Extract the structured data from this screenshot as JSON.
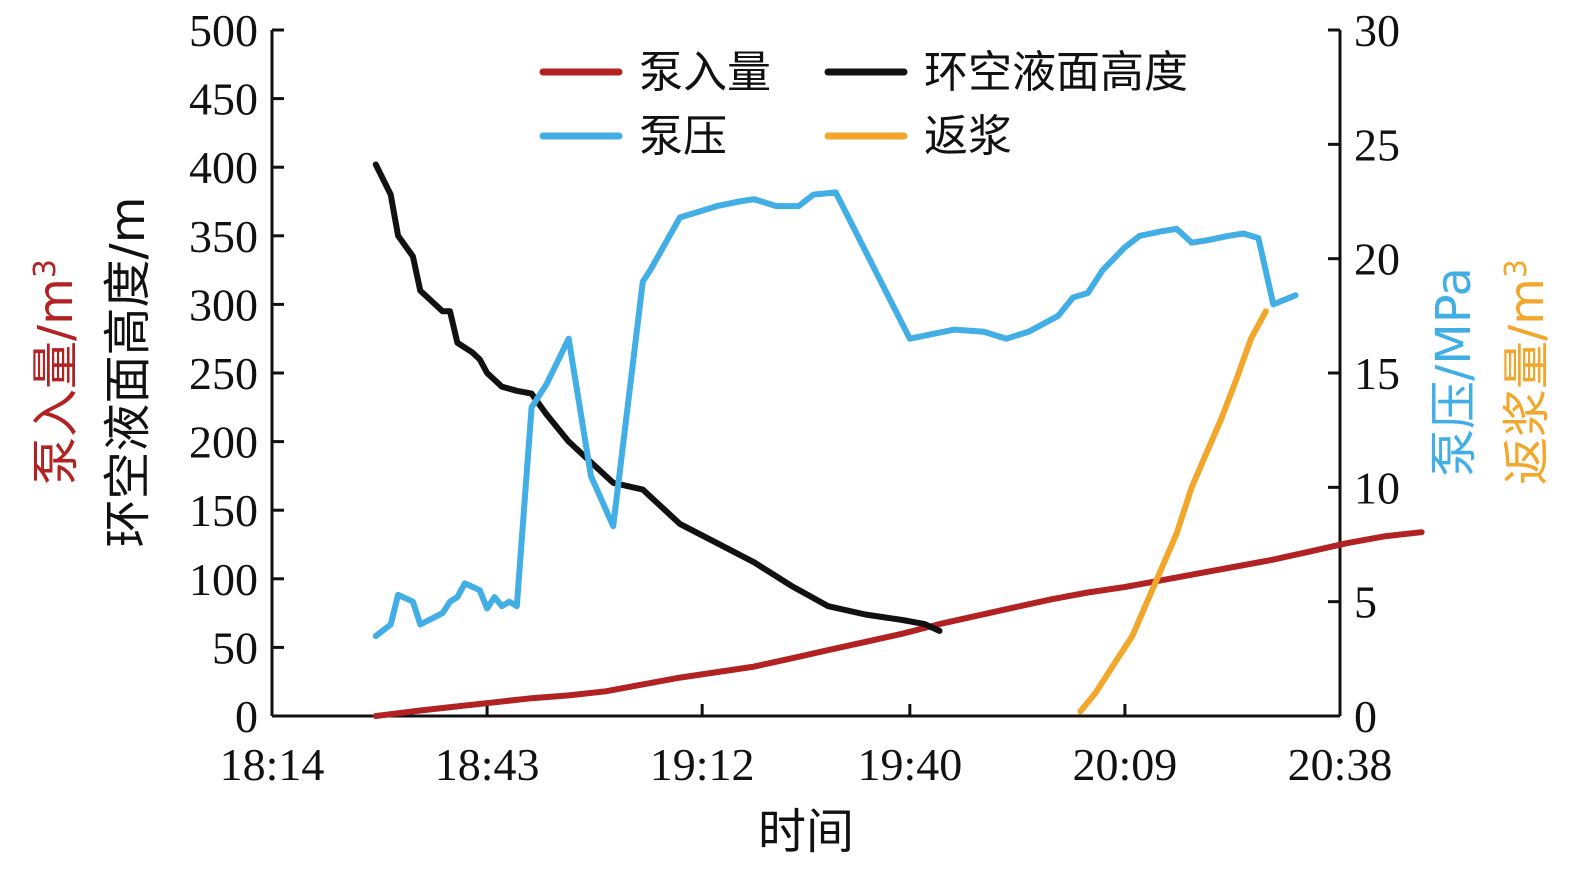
{
  "chart_data": {
    "type": "line",
    "xlabel": "时间",
    "x_tick_labels": [
      "18:14",
      "18:43",
      "19:12",
      "19:40",
      "20:09",
      "20:38"
    ],
    "x_ticks_min": [
      0,
      29,
      58,
      86,
      115,
      144
    ],
    "left_axis": {
      "label_pump": "泵入量/m",
      "label_pump_sup": "3",
      "label_level": "环空液面高度/m",
      "ylim": [
        0,
        500
      ],
      "ticks": [
        0,
        50,
        100,
        150,
        200,
        250,
        300,
        350,
        400,
        450,
        500
      ]
    },
    "right_axis": {
      "label_pressure": "泵压/MPa",
      "label_return": "返浆量/m",
      "label_return_sup": "3",
      "ylim": [
        0,
        30
      ],
      "ticks": [
        0,
        5,
        10,
        15,
        20,
        25,
        30
      ]
    },
    "legend": {
      "placement": "top-center"
    },
    "series": [
      {
        "name": "泵入量",
        "color": "#b22222",
        "axis": "left",
        "points": [
          [
            14,
            0
          ],
          [
            20,
            4
          ],
          [
            25,
            7
          ],
          [
            30,
            10
          ],
          [
            35,
            13
          ],
          [
            40,
            15
          ],
          [
            45,
            18
          ],
          [
            50,
            23
          ],
          [
            55,
            28
          ],
          [
            60,
            32
          ],
          [
            65,
            36
          ],
          [
            70,
            42
          ],
          [
            75,
            48
          ],
          [
            80,
            54
          ],
          [
            85,
            60
          ],
          [
            90,
            67
          ],
          [
            95,
            73
          ],
          [
            100,
            79
          ],
          [
            105,
            85
          ],
          [
            110,
            90
          ],
          [
            115,
            94
          ],
          [
            120,
            99
          ],
          [
            125,
            104
          ],
          [
            130,
            109
          ],
          [
            135,
            114
          ],
          [
            140,
            120
          ],
          [
            145,
            126
          ],
          [
            150,
            131
          ],
          [
            155,
            134
          ]
        ]
      },
      {
        "name": "环空液面高度",
        "color": "#111111",
        "axis": "left",
        "points": [
          [
            14,
            402
          ],
          [
            16,
            380
          ],
          [
            17,
            350
          ],
          [
            19,
            335
          ],
          [
            20,
            310
          ],
          [
            22,
            300
          ],
          [
            23,
            295
          ],
          [
            24,
            295
          ],
          [
            25,
            272
          ],
          [
            27,
            265
          ],
          [
            28,
            260
          ],
          [
            29,
            250
          ],
          [
            31,
            240
          ],
          [
            33,
            237
          ],
          [
            35,
            235
          ],
          [
            37,
            220
          ],
          [
            40,
            200
          ],
          [
            43,
            185
          ],
          [
            46,
            170
          ],
          [
            50,
            165
          ],
          [
            55,
            140
          ],
          [
            60,
            126
          ],
          [
            65,
            112
          ],
          [
            70,
            95
          ],
          [
            75,
            80
          ],
          [
            80,
            74
          ],
          [
            85,
            70
          ],
          [
            88,
            67
          ],
          [
            90,
            62
          ]
        ]
      },
      {
        "name": "泵压",
        "color": "#41aee6",
        "axis": "right",
        "points": [
          [
            14,
            3.5
          ],
          [
            16,
            4.0
          ],
          [
            17,
            5.3
          ],
          [
            19,
            5.0
          ],
          [
            20,
            4.0
          ],
          [
            23,
            4.5
          ],
          [
            24,
            5.0
          ],
          [
            25,
            5.2
          ],
          [
            26,
            5.8
          ],
          [
            28,
            5.5
          ],
          [
            29,
            4.7
          ],
          [
            30,
            5.2
          ],
          [
            31,
            4.8
          ],
          [
            32,
            5.0
          ],
          [
            33,
            4.8
          ],
          [
            35,
            13.5
          ],
          [
            37,
            14.5
          ],
          [
            40,
            16.5
          ],
          [
            43,
            10.5
          ],
          [
            46,
            8.3
          ],
          [
            50,
            19.0
          ],
          [
            51,
            19.5
          ],
          [
            55,
            21.8
          ],
          [
            60,
            22.3
          ],
          [
            63,
            22.5
          ],
          [
            65,
            22.6
          ],
          [
            68,
            22.3
          ],
          [
            71,
            22.3
          ],
          [
            73,
            22.8
          ],
          [
            76,
            22.9
          ],
          [
            86,
            16.5
          ],
          [
            92,
            16.9
          ],
          [
            96,
            16.8
          ],
          [
            99,
            16.5
          ],
          [
            102,
            16.8
          ],
          [
            106,
            17.5
          ],
          [
            108,
            18.3
          ],
          [
            110,
            18.5
          ],
          [
            112,
            19.5
          ],
          [
            115,
            20.5
          ],
          [
            117,
            21.0
          ],
          [
            120,
            21.2
          ],
          [
            122,
            21.3
          ],
          [
            124,
            20.7
          ],
          [
            126,
            20.8
          ],
          [
            129,
            21.0
          ],
          [
            131,
            21.1
          ],
          [
            133,
            20.9
          ],
          [
            135,
            18.0
          ],
          [
            138,
            18.4
          ]
        ]
      },
      {
        "name": "返浆",
        "color": "#f2a72b",
        "axis": "right",
        "points": [
          [
            109,
            0.2
          ],
          [
            111,
            1.0
          ],
          [
            112,
            1.5
          ],
          [
            114,
            2.5
          ],
          [
            116,
            3.5
          ],
          [
            118,
            5.0
          ],
          [
            120,
            6.5
          ],
          [
            122,
            8.0
          ],
          [
            124,
            10.0
          ],
          [
            126,
            11.5
          ],
          [
            128,
            13.0
          ],
          [
            130,
            14.7
          ],
          [
            132,
            16.5
          ],
          [
            134,
            17.7
          ]
        ]
      }
    ]
  }
}
